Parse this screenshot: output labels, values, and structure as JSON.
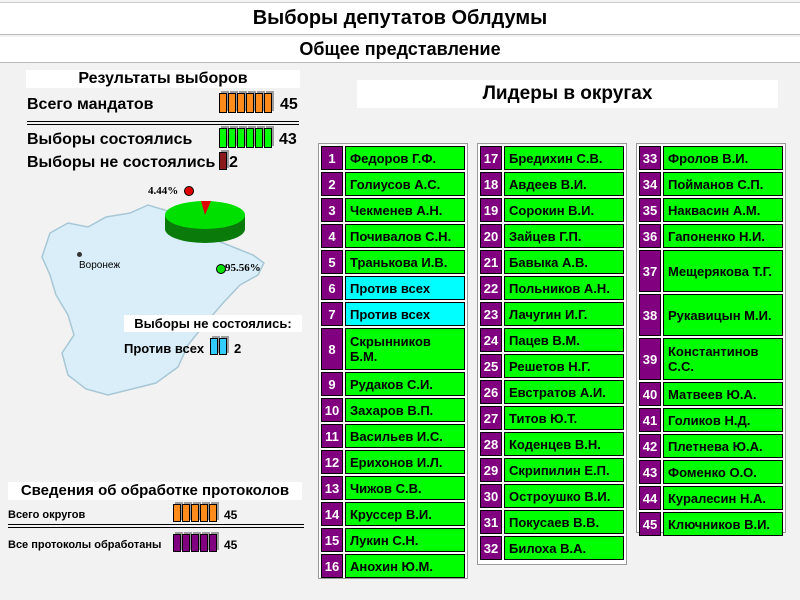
{
  "header": {
    "title": "Выборы депутатов Облдумы",
    "subtitle": "Общее представление"
  },
  "results": {
    "title": "Результаты выборов",
    "total_label": "Всего мандатов",
    "total_value": "45",
    "held_label": "Выборы состоялись",
    "held_value": "43",
    "not_held_label": "Выборы не состоялись",
    "not_held_value": "2",
    "pie_small_label": "4.44%",
    "pie_large_label": "95.56%",
    "pie_values": [
      4.44,
      95.56
    ],
    "city_label": "Воронеж",
    "not_held_section_title": "Выборы не состоялись:",
    "against_label": "Против всех",
    "against_value": "2"
  },
  "protocols": {
    "title": "Сведения об обработке протоколов",
    "districts_label": "Всего округов",
    "districts_value": "45",
    "processed_label": "Все протоколы обработаны",
    "processed_value": "45"
  },
  "leaders": {
    "title": "Лидеры в округах",
    "items": [
      {
        "n": "1",
        "name": "Федоров Г.Ф."
      },
      {
        "n": "2",
        "name": "Голиусов А.С."
      },
      {
        "n": "3",
        "name": "Чекменев А.Н."
      },
      {
        "n": "4",
        "name": "Почивалов С.Н."
      },
      {
        "n": "5",
        "name": "Транькова И.В."
      },
      {
        "n": "6",
        "name": "Против всех"
      },
      {
        "n": "7",
        "name": "Против всех"
      },
      {
        "n": "8",
        "name": "Скрынников Б.М."
      },
      {
        "n": "9",
        "name": "Рудаков С.И."
      },
      {
        "n": "10",
        "name": "Захаров В.П."
      },
      {
        "n": "11",
        "name": "Васильев И.С."
      },
      {
        "n": "12",
        "name": "Ерихонов И.Л."
      },
      {
        "n": "13",
        "name": "Чижов С.В."
      },
      {
        "n": "14",
        "name": "Круссер В.И."
      },
      {
        "n": "15",
        "name": "Лукин С.Н."
      },
      {
        "n": "16",
        "name": "Анохин Ю.М."
      },
      {
        "n": "17",
        "name": "Бредихин С.В."
      },
      {
        "n": "18",
        "name": "Авдеев В.И."
      },
      {
        "n": "19",
        "name": "Сорокин В.И."
      },
      {
        "n": "20",
        "name": "Зайцев Г.П."
      },
      {
        "n": "21",
        "name": "Бавыка А.В."
      },
      {
        "n": "22",
        "name": "Польников А.Н."
      },
      {
        "n": "23",
        "name": "Лачугин И.Г."
      },
      {
        "n": "24",
        "name": "Пацев В.М."
      },
      {
        "n": "25",
        "name": "Решетов Н.Г."
      },
      {
        "n": "26",
        "name": "Евстратов А.И."
      },
      {
        "n": "27",
        "name": "Титов Ю.Т."
      },
      {
        "n": "28",
        "name": "Коденцев В.Н."
      },
      {
        "n": "29",
        "name": "Скрипилин Е.П."
      },
      {
        "n": "30",
        "name": "Остроушко В.И."
      },
      {
        "n": "31",
        "name": "Покусаев В.В."
      },
      {
        "n": "32",
        "name": "Билоха В.А."
      },
      {
        "n": "33",
        "name": "Фролов В.И."
      },
      {
        "n": "34",
        "name": "Пойманов С.П."
      },
      {
        "n": "35",
        "name": "Наквасин А.М."
      },
      {
        "n": "36",
        "name": "Гапоненко Н.И."
      },
      {
        "n": "37",
        "name": "Мещерякова Т.Г."
      },
      {
        "n": "38",
        "name": "Рукавицын М.И."
      },
      {
        "n": "39",
        "name": "Константинов С.С."
      },
      {
        "n": "40",
        "name": "Матвеев Ю.А."
      },
      {
        "n": "41",
        "name": "Голиков Н.Д."
      },
      {
        "n": "42",
        "name": "Плетнева Ю.А."
      },
      {
        "n": "43",
        "name": "Фоменко О.О."
      },
      {
        "n": "44",
        "name": "Куралесин Н.А."
      },
      {
        "n": "45",
        "name": "Ключников В.И."
      }
    ]
  },
  "colors": {
    "orange": "#ff8c1a",
    "green": "#00ff00",
    "maroon": "#8b1a1a",
    "cyan": "#33ccff",
    "purple": "#800080",
    "against": "#00ffff"
  }
}
